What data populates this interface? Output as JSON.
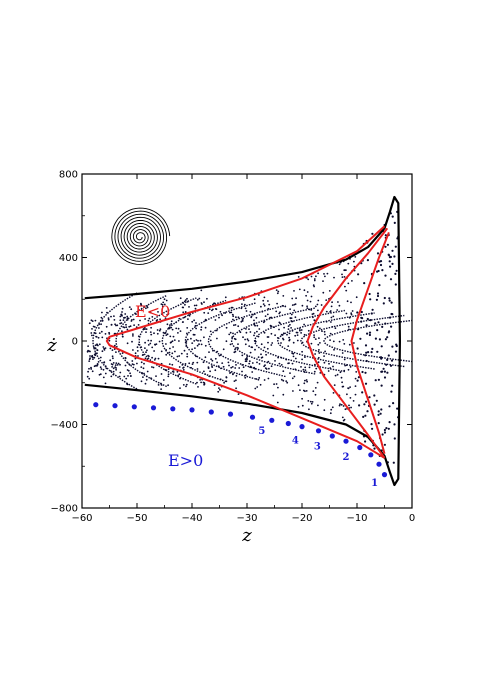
{
  "chart_data": {
    "type": "scatter",
    "title": "",
    "xlabel": "z",
    "ylabel": "ż",
    "xlim": [
      -60,
      0
    ],
    "ylim": [
      -800,
      800
    ],
    "x_ticks": [
      "−60",
      "−50",
      "−40",
      "−30",
      "−20",
      "−10",
      "0"
    ],
    "y_ticks": [
      "800",
      "400",
      "0",
      "−400",
      "−800"
    ],
    "grid": false,
    "annotations": [
      {
        "text": "E<0",
        "color": "#e81e1e"
      },
      {
        "text": "E>0",
        "color": "#1a1ad6"
      }
    ],
    "blue_points": {
      "x": [
        -57.5,
        -54,
        -50.5,
        -47,
        -43.5,
        -40,
        -36.5,
        -33,
        -29,
        -25.5,
        -22.5,
        -20,
        -17,
        -14.5,
        -12,
        -9.5,
        -7.5,
        -6,
        -5
      ],
      "y": [
        -305,
        -310,
        -315,
        -320,
        -325,
        -330,
        -340,
        -350,
        -365,
        -380,
        -395,
        -410,
        -430,
        -455,
        -480,
        -510,
        -545,
        -590,
        -640
      ],
      "labels": [
        {
          "text": "5",
          "x": -27.3,
          "y": -445
        },
        {
          "text": "4",
          "x": -21.2,
          "y": -490
        },
        {
          "text": "3",
          "x": -17.2,
          "y": -520
        },
        {
          "text": "2",
          "x": -12,
          "y": -570
        },
        {
          "text": "1",
          "x": -6.8,
          "y": -695
        }
      ]
    },
    "black_separatrix": {
      "x": [
        -59.5,
        -50,
        -40,
        -30,
        -20,
        -12,
        -8,
        -5,
        -4,
        -3.2,
        -2.5,
        -2.2,
        -2.5,
        -3.2,
        -4,
        -5,
        -8,
        -12,
        -20,
        -30,
        -40,
        -50,
        -59.5
      ],
      "y": [
        205,
        225,
        250,
        285,
        330,
        390,
        450,
        540,
        620,
        690,
        660,
        0,
        -660,
        -690,
        -630,
        -550,
        -460,
        -400,
        -345,
        -300,
        -265,
        -235,
        -210
      ]
    },
    "red_curves": [
      {
        "x": [
          -5,
          -10,
          -20,
          -30,
          -40,
          -50,
          -55,
          -55.5,
          -55,
          -50,
          -40,
          -30,
          -20,
          -10,
          -5
        ],
        "y": [
          550,
          430,
          300,
          210,
          140,
          60,
          20,
          0,
          -20,
          -80,
          -160,
          -260,
          -370,
          -480,
          -560
        ]
      },
      {
        "x": [
          -4.5,
          -8,
          -12,
          -16,
          -18,
          -19,
          -18,
          -16,
          -12,
          -8,
          -5
        ],
        "y": [
          540,
          420,
          300,
          160,
          70,
          0,
          -70,
          -170,
          -310,
          -450,
          -560
        ]
      },
      {
        "x": [
          -4.2,
          -6,
          -8,
          -10,
          -11,
          -10,
          -8,
          -6,
          -5
        ],
        "y": [
          520,
          400,
          250,
          100,
          0,
          -120,
          -280,
          -440,
          -540
        ]
      }
    ]
  },
  "inset": {
    "icon": "spiral-icon"
  }
}
